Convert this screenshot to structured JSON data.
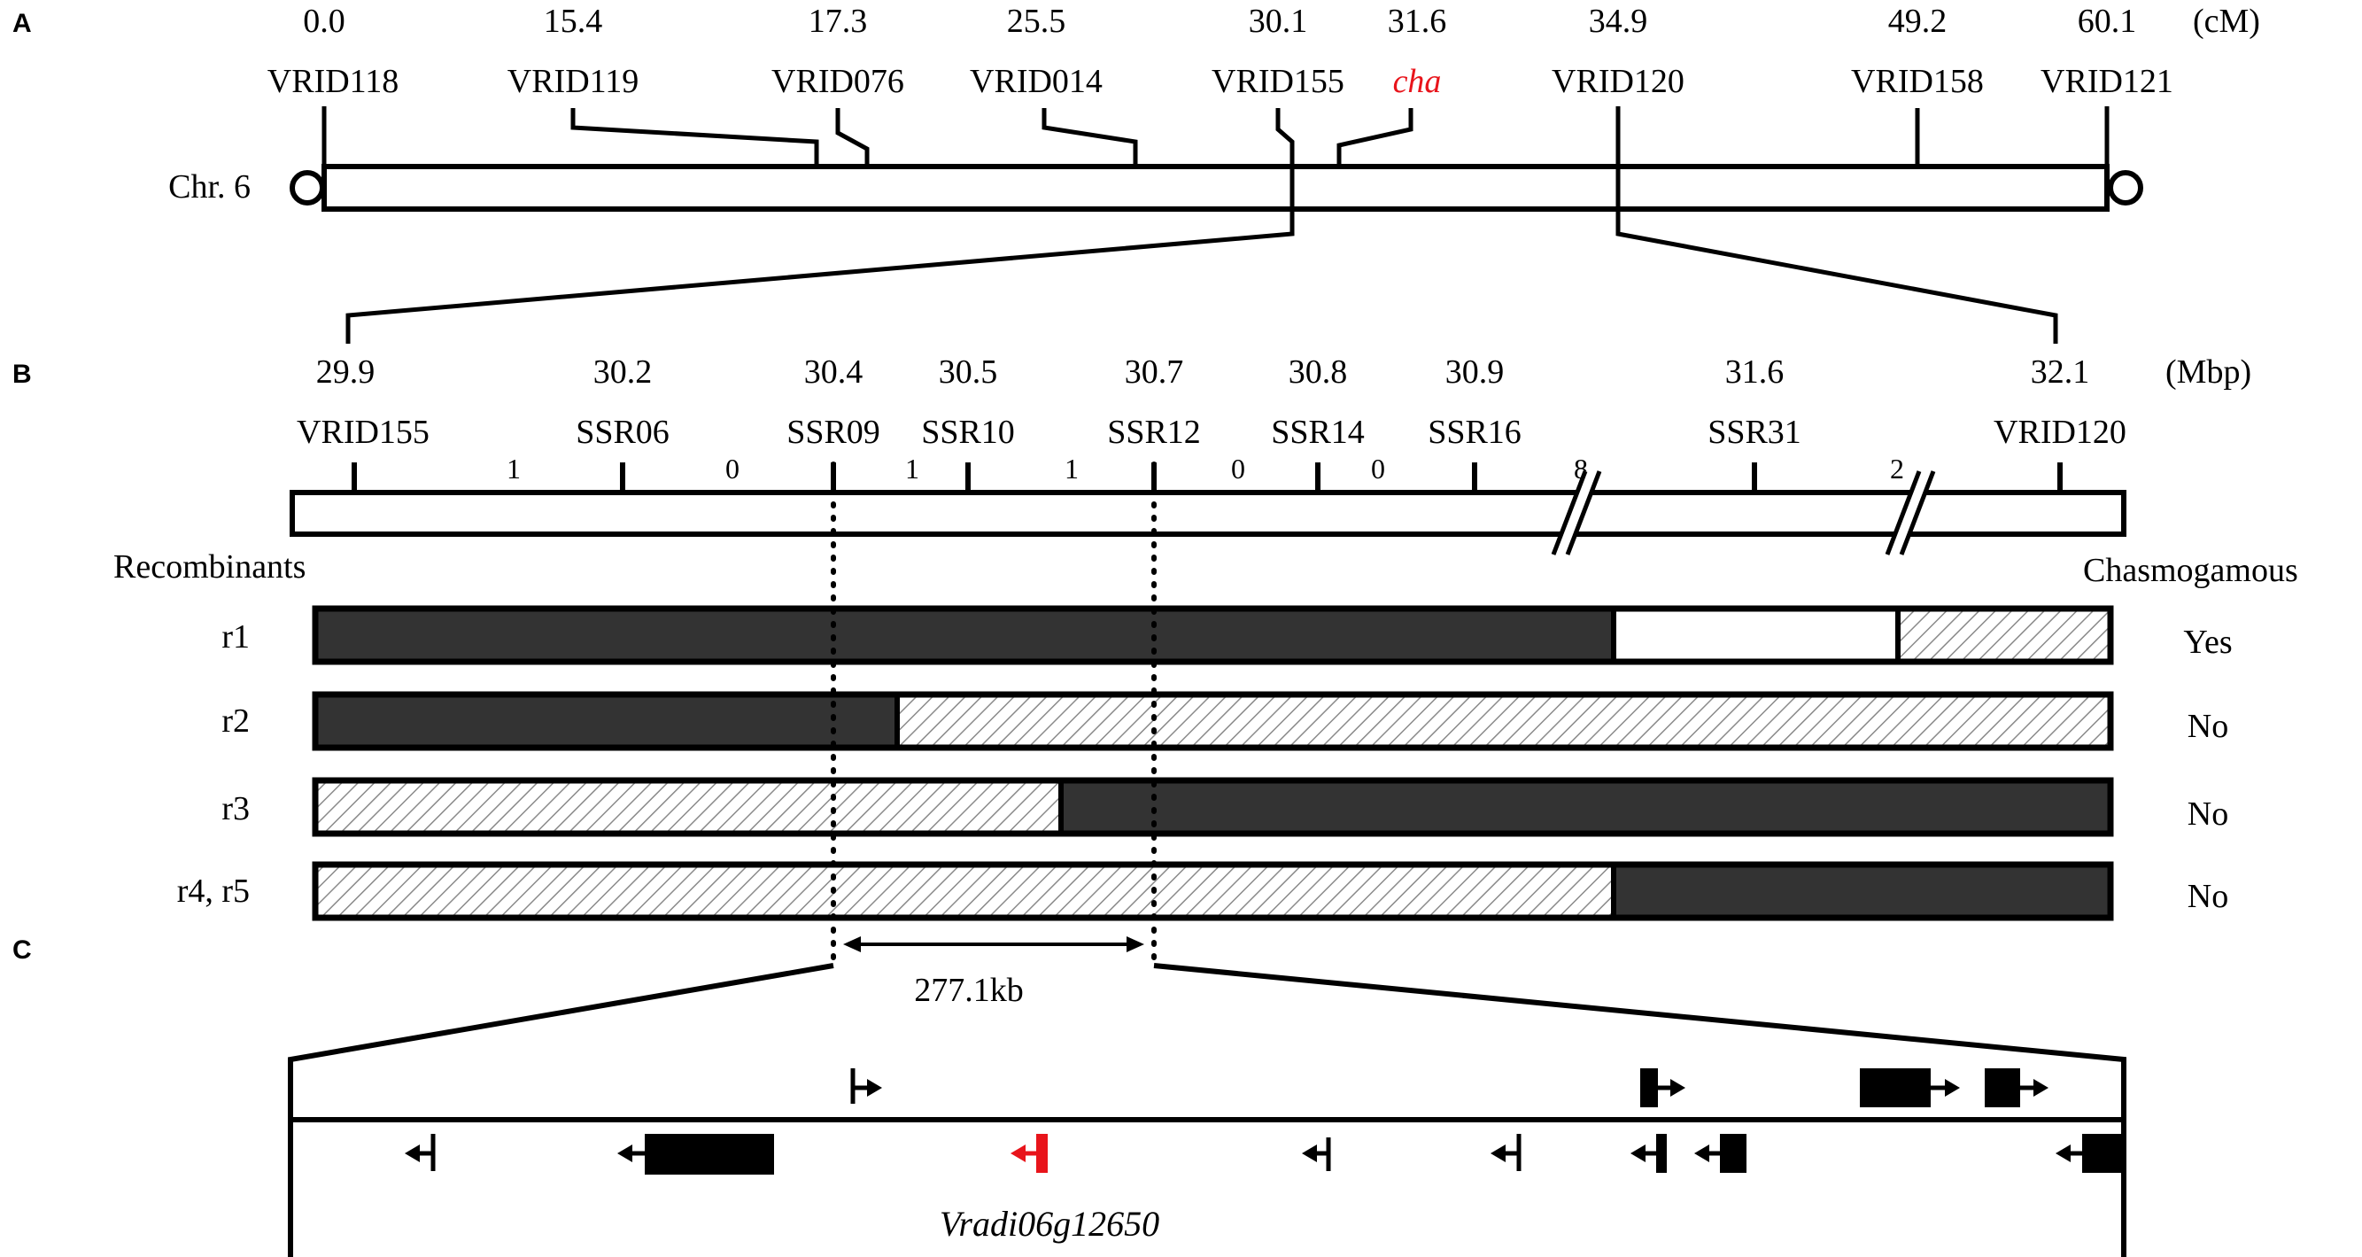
{
  "panel_labels": {
    "a": "A",
    "b": "B",
    "c": "C"
  },
  "colors": {
    "black": "#000000",
    "dark_fill": "#333333",
    "highlight": "#e8141b",
    "white": "#ffffff"
  },
  "panel_a": {
    "unit": "(cM)",
    "chromosome_label": "Chr. 6",
    "markers": [
      {
        "name": "VRID118",
        "pos": "0.0"
      },
      {
        "name": "VRID119",
        "pos": "15.4"
      },
      {
        "name": "VRID076",
        "pos": "17.3"
      },
      {
        "name": "VRID014",
        "pos": "25.5"
      },
      {
        "name": "VRID155",
        "pos": "30.1"
      },
      {
        "name": "cha",
        "pos": "31.6",
        "highlight": true
      },
      {
        "name": "VRID120",
        "pos": "34.9"
      },
      {
        "name": "VRID158",
        "pos": "49.2"
      },
      {
        "name": "VRID121",
        "pos": "60.1"
      }
    ]
  },
  "panel_b": {
    "unit": "(Mbp)",
    "markers": [
      {
        "name": "VRID155",
        "pos": "29.9"
      },
      {
        "name": "SSR06",
        "pos": "30.2"
      },
      {
        "name": "SSR09",
        "pos": "30.4"
      },
      {
        "name": "SSR10",
        "pos": "30.5"
      },
      {
        "name": "SSR12",
        "pos": "30.7"
      },
      {
        "name": "SSR14",
        "pos": "30.8"
      },
      {
        "name": "SSR16",
        "pos": "30.9"
      },
      {
        "name": "SSR31",
        "pos": "31.6"
      },
      {
        "name": "VRID120",
        "pos": "32.1"
      }
    ],
    "interval_counts": [
      "1",
      "0",
      "1",
      "1",
      "0",
      "0",
      "8",
      "2"
    ],
    "recombinants_header": "Recombinants",
    "phenotype_header": "Chasmogamous",
    "recombinants": [
      {
        "label": "r1",
        "phenotype": "Yes"
      },
      {
        "label": "r2",
        "phenotype": "No"
      },
      {
        "label": "r3",
        "phenotype": "No"
      },
      {
        "label": "r4, r5",
        "phenotype": "No"
      }
    ]
  },
  "panel_c": {
    "interval_size": "277.1kb",
    "candidate_gene": "Vradi06g12650"
  }
}
